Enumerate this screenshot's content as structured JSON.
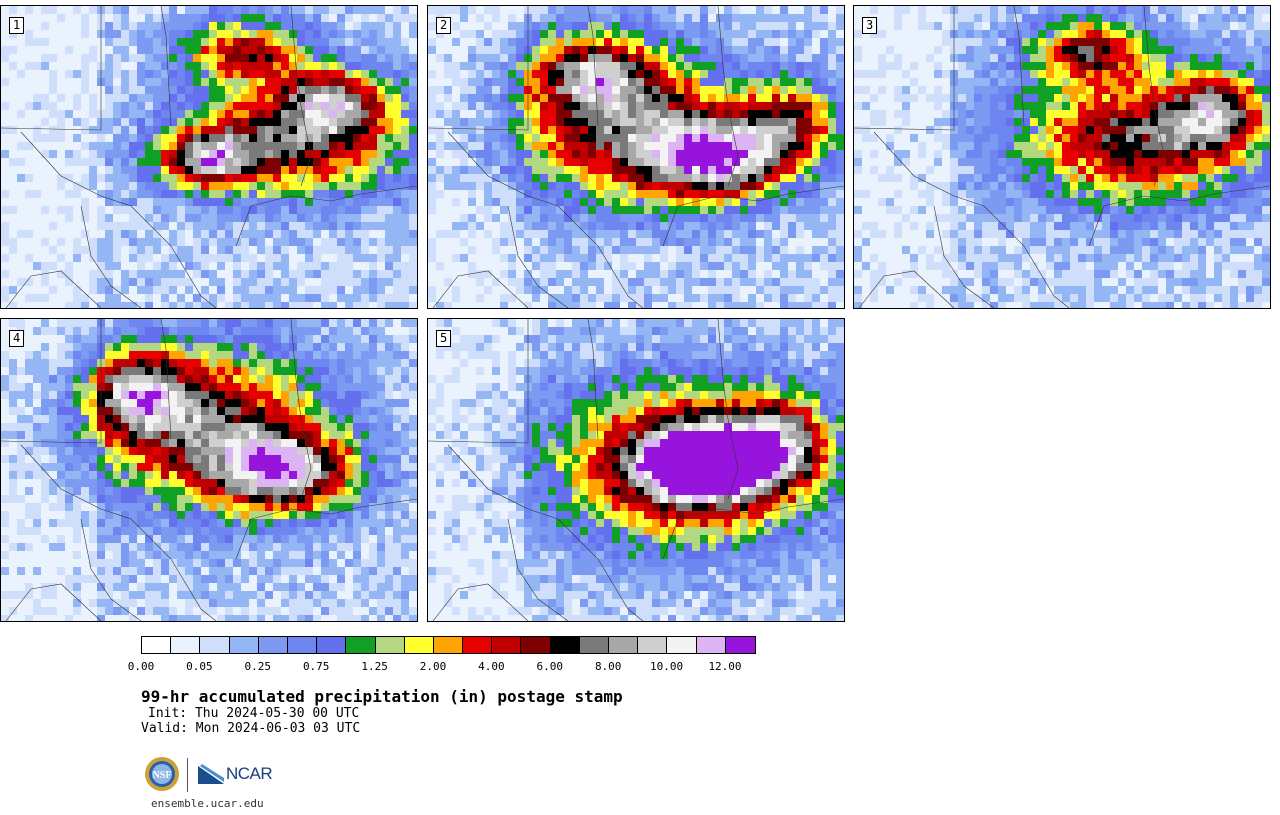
{
  "panels": [
    {
      "label": "1",
      "field": "stamp-1"
    },
    {
      "label": "2",
      "field": "stamp-2"
    },
    {
      "label": "3",
      "field": "stamp-3"
    },
    {
      "label": "4",
      "field": "stamp-4"
    },
    {
      "label": "5",
      "field": "stamp-5"
    }
  ],
  "colorbar": {
    "colors": [
      "#ffffff",
      "#e9f2fd",
      "#cfdefa",
      "#94b6f5",
      "#7d9af2",
      "#6e86f0",
      "#6470ee",
      "#10a024",
      "#b4d880",
      "#ffff2e",
      "#ffa400",
      "#e60000",
      "#c00000",
      "#7f0000",
      "#000000",
      "#7a7a7a",
      "#a8a8a8",
      "#cfcfcf",
      "#f3f3f3",
      "#dcb4f4",
      "#9614dc"
    ],
    "tick_labels": [
      "0.00",
      "0.05",
      "0.25",
      "0.75",
      "1.25",
      "2.00",
      "4.00",
      "6.00",
      "8.00",
      "10.00",
      "12.00"
    ]
  },
  "title": "99-hr accumulated precipitation (in) postage stamp",
  "init": "Init: Thu 2024-05-30 00 UTC",
  "valid": "Valid: Mon 2024-06-03 03 UTC",
  "logos": {
    "nsf": "NSF",
    "ncar": "NCAR"
  },
  "site": "ensemble.ucar.edu"
}
